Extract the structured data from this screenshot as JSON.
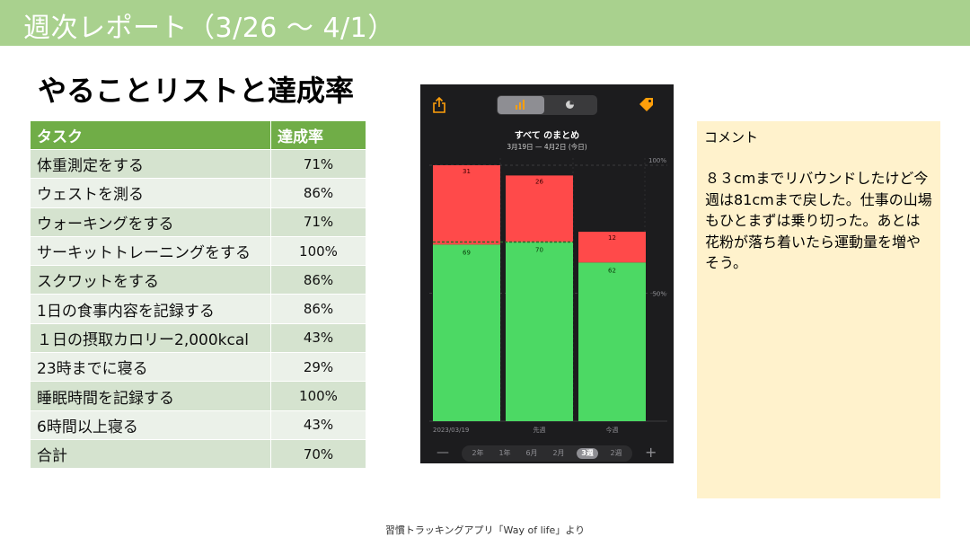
{
  "header": {
    "title": "週次レポート（3/26 〜 4/1）"
  },
  "section_title": "やることリストと達成率",
  "table": {
    "headers": [
      "タスク",
      "達成率"
    ],
    "rows": [
      [
        "体重測定をする",
        "71%"
      ],
      [
        "ウェストを測る",
        "86%"
      ],
      [
        "ウォーキングをする",
        "71%"
      ],
      [
        "サーキットトレーニングをする",
        "100%"
      ],
      [
        "スクワットをする",
        "86%"
      ],
      [
        "1日の食事内容を記録する",
        "86%"
      ],
      [
        "１日の摂取カロリー2,000kcal",
        "43%"
      ],
      [
        "23時までに寝る",
        "29%"
      ],
      [
        "睡眠時間を記録する",
        "100%"
      ],
      [
        "6時間以上寝る",
        "43%"
      ],
      [
        "合計",
        "70%"
      ]
    ]
  },
  "phone": {
    "icons": [
      "share-icon",
      "bar-chart-icon",
      "pie-chart-icon",
      "tag-icon"
    ],
    "colors": {
      "accent": "#ff9f0a",
      "done": "#4cd964",
      "missed": "#ff4a4a",
      "background": "#1c1c1e"
    },
    "range_options": [
      "2年",
      "1年",
      "6月",
      "2月",
      "3週",
      "2週"
    ],
    "range_selected": "3週",
    "minus_label": "—",
    "plus_label": "+",
    "chart_data": {
      "type": "bar",
      "stacked": true,
      "title": "すべて のまとめ",
      "subtitle": "3月19日 — 4月2日 (今日)",
      "categories": [
        "2023/03/19",
        "先週",
        "今週"
      ],
      "series": [
        {
          "values": [
            69,
            70,
            62
          ],
          "color": "#4cd964"
        },
        {
          "values": [
            31,
            26,
            12
          ],
          "color": "#ff4a4a"
        }
      ],
      "y_ticks": [
        "100%",
        "50%"
      ],
      "ylim": [
        0,
        100
      ],
      "average_line": 70
    }
  },
  "comment": {
    "label": "コメント",
    "body": "８３cmまでリバウンドしたけど今週は81cmまで戻した。仕事の山場もひとまずは乗り切った。あとは花粉が落ち着いたら運動量を増やそう。"
  },
  "footer": "習慣トラッキングアプリ「Way of life」より"
}
